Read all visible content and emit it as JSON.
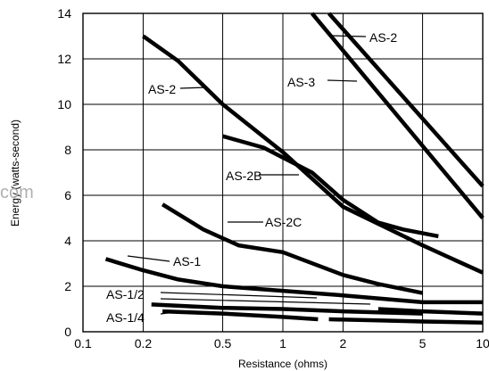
{
  "watermark": "com",
  "chart_data": {
    "type": "line",
    "title": "",
    "xlabel": "Resistance (ohms)",
    "ylabel": "Energy (watts-second)",
    "xscale": "log",
    "xlim": [
      0.1,
      10
    ],
    "ylim": [
      0,
      14
    ],
    "x_ticks": [
      0.1,
      0.2,
      0.5,
      1,
      2,
      5,
      10
    ],
    "x_tick_labels": [
      "0.1",
      "0.2",
      "0.5",
      "1",
      "2",
      "5",
      "10"
    ],
    "y_ticks": [
      0,
      2,
      4,
      6,
      8,
      10,
      12,
      14
    ],
    "y_tick_labels": [
      "0",
      "2",
      "4",
      "6",
      "8",
      "10",
      "12",
      "14"
    ],
    "grid": true,
    "legend": "none (curves labeled directly)",
    "series": [
      {
        "name": "AS-2",
        "x": [
          1.7,
          10
        ],
        "y": [
          14,
          6.4
        ]
      },
      {
        "name": "AS-3",
        "x": [
          1.4,
          10
        ],
        "y": [
          14,
          5.0
        ]
      },
      {
        "name": "AS-2",
        "x": [
          0.2,
          0.3,
          0.5,
          1,
          2,
          5,
          10
        ],
        "y": [
          13,
          11.9,
          10,
          7.9,
          5.5,
          3.8,
          2.6
        ]
      },
      {
        "name": "AS-2B",
        "x": [
          0.5,
          0.8,
          1.4,
          2,
          3,
          4,
          6
        ],
        "y": [
          8.6,
          8.1,
          7.0,
          5.8,
          4.8,
          4.5,
          4.2
        ]
      },
      {
        "name": "AS-2C",
        "x": [
          0.25,
          0.4,
          0.6,
          1,
          2,
          3,
          5
        ],
        "y": [
          5.6,
          4.5,
          3.8,
          3.5,
          2.5,
          2.1,
          1.7
        ]
      },
      {
        "name": "AS-1",
        "x": [
          0.13,
          0.2,
          0.3,
          0.5,
          1,
          2,
          5,
          10
        ],
        "y": [
          3.2,
          2.7,
          2.3,
          2.0,
          1.8,
          1.6,
          1.3,
          1.3
        ]
      },
      {
        "name": "AS-1/2",
        "x": [
          0.22,
          0.5,
          1,
          2,
          3,
          5
        ],
        "y": [
          1.2,
          1.05,
          1.0,
          0.9,
          0.85,
          0.8
        ]
      },
      {
        "name": "AS-1/2",
        "x": [
          3,
          5,
          10
        ],
        "y": [
          1.0,
          0.9,
          0.8
        ]
      },
      {
        "name": "AS-1/4",
        "x": [
          0.25,
          0.5,
          1,
          1.5
        ],
        "y": [
          0.9,
          0.8,
          0.65,
          0.55
        ]
      },
      {
        "name": "AS-1/4",
        "x": [
          1.7,
          3,
          5,
          10
        ],
        "y": [
          0.55,
          0.5,
          0.45,
          0.4
        ]
      }
    ],
    "labels": [
      {
        "text": "AS-2",
        "series": 0
      },
      {
        "text": "AS-3",
        "series": 1
      },
      {
        "text": "AS-2",
        "series": 2
      },
      {
        "text": "AS-2B",
        "series": 3
      },
      {
        "text": "AS-2C",
        "series": 4
      },
      {
        "text": "AS-1",
        "series": 5
      },
      {
        "text": "AS-1/2",
        "series": 6
      },
      {
        "text": "AS-1/4",
        "series": 8
      }
    ]
  }
}
